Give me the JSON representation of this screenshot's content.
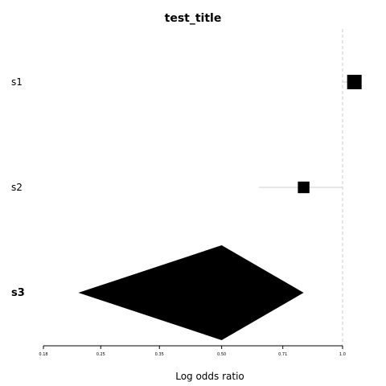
{
  "chart_data": {
    "type": "forest",
    "title": "test_title",
    "xlabel": "Log odds ratio",
    "x_scale": "log",
    "xlim": [
      0.18,
      1.0
    ],
    "reference_line": 1.0,
    "grid": false,
    "ticks": [
      {
        "value": 0.18,
        "label": "0.18"
      },
      {
        "value": 0.25,
        "label": "0.25"
      },
      {
        "value": 0.35,
        "label": "0.35"
      },
      {
        "value": 0.5,
        "label": "0.50"
      },
      {
        "value": 0.71,
        "label": "0.71"
      },
      {
        "value": 1.0,
        "label": "1.0"
      }
    ],
    "rows": [
      {
        "label": "s1",
        "estimate": 1.07,
        "ci": [
          1.0,
          1.1
        ],
        "weight": 1.0,
        "summary": false
      },
      {
        "label": "s2",
        "estimate": 0.8,
        "ci": [
          0.62,
          1.0
        ],
        "weight": 0.55,
        "summary": false
      },
      {
        "label": "s3",
        "estimate": 0.5,
        "ci": [
          0.22,
          0.8
        ],
        "summary": true
      }
    ]
  }
}
